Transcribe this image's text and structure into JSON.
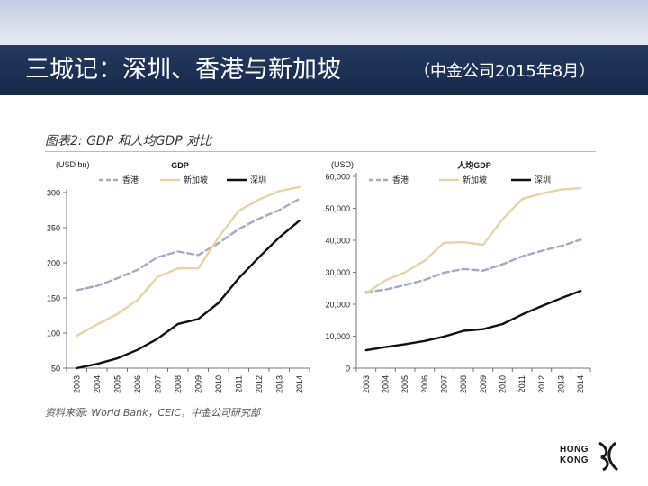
{
  "slide": {
    "title": "三城记：深圳、香港与新加坡",
    "subtitle": "（中金公司2015年8月）",
    "figure_title": "图表2: GDP 和人均GDP 对比",
    "source_note": "资料来源: World Bank，CEIC，中金公司研究部",
    "logo_line1": "HONG",
    "logo_line2": "KONG"
  },
  "chart_data": [
    {
      "type": "line",
      "title": "GDP",
      "unit_label": "(USD bn)",
      "categories": [
        "2003",
        "2004",
        "2005",
        "2006",
        "2007",
        "2008",
        "2009",
        "2010",
        "2011",
        "2012",
        "2013",
        "2014"
      ],
      "ylim": [
        50,
        300
      ],
      "yticks": [
        50,
        100,
        150,
        200,
        250,
        300
      ],
      "ytick_labels": [
        "50",
        "100",
        "150",
        "200",
        "250",
        "300"
      ],
      "grid": false,
      "legend_position": "top",
      "series": [
        {
          "name": "香港",
          "color": "#a7a9c4",
          "style": "dashed",
          "values": [
            161,
            167,
            178,
            190,
            208,
            216,
            211,
            228,
            248,
            263,
            275,
            291
          ]
        },
        {
          "name": "新加坡",
          "color": "#e8d2a8",
          "style": "solid",
          "values": [
            96,
            112,
            127,
            147,
            180,
            192,
            192,
            236,
            274,
            290,
            302,
            308
          ]
        },
        {
          "name": "深圳",
          "color": "#111111",
          "style": "solid",
          "values": [
            50,
            56,
            64,
            76,
            92,
            113,
            120,
            143,
            178,
            208,
            236,
            260
          ]
        }
      ]
    },
    {
      "type": "line",
      "title": "人均GDP",
      "unit_label": "(USD)",
      "categories": [
        "2003",
        "2004",
        "2005",
        "2006",
        "2007",
        "2008",
        "2009",
        "2010",
        "2011",
        "2012",
        "2013",
        "2014"
      ],
      "ylim": [
        0,
        60000
      ],
      "yticks": [
        0,
        10000,
        20000,
        30000,
        40000,
        50000,
        60000
      ],
      "ytick_labels": [
        "0",
        "10,000",
        "20,000",
        "30,000",
        "40,000",
        "50,000",
        "60,000"
      ],
      "grid": false,
      "legend_position": "top",
      "series": [
        {
          "name": "香港",
          "color": "#a7a9c4",
          "style": "dashed",
          "values": [
            23800,
            24600,
            26000,
            27600,
            29900,
            31000,
            30500,
            32500,
            35000,
            36700,
            38200,
            40200
          ]
        },
        {
          "name": "新加坡",
          "color": "#e8d2a8",
          "style": "solid",
          "values": [
            23400,
            27500,
            30000,
            33600,
            39200,
            39400,
            38600,
            46600,
            52900,
            54600,
            55900,
            56300
          ]
        },
        {
          "name": "深圳",
          "color": "#111111",
          "style": "solid",
          "values": [
            5600,
            6600,
            7500,
            8500,
            9900,
            11700,
            12200,
            13800,
            16800,
            19400,
            21900,
            24200
          ]
        }
      ]
    }
  ]
}
